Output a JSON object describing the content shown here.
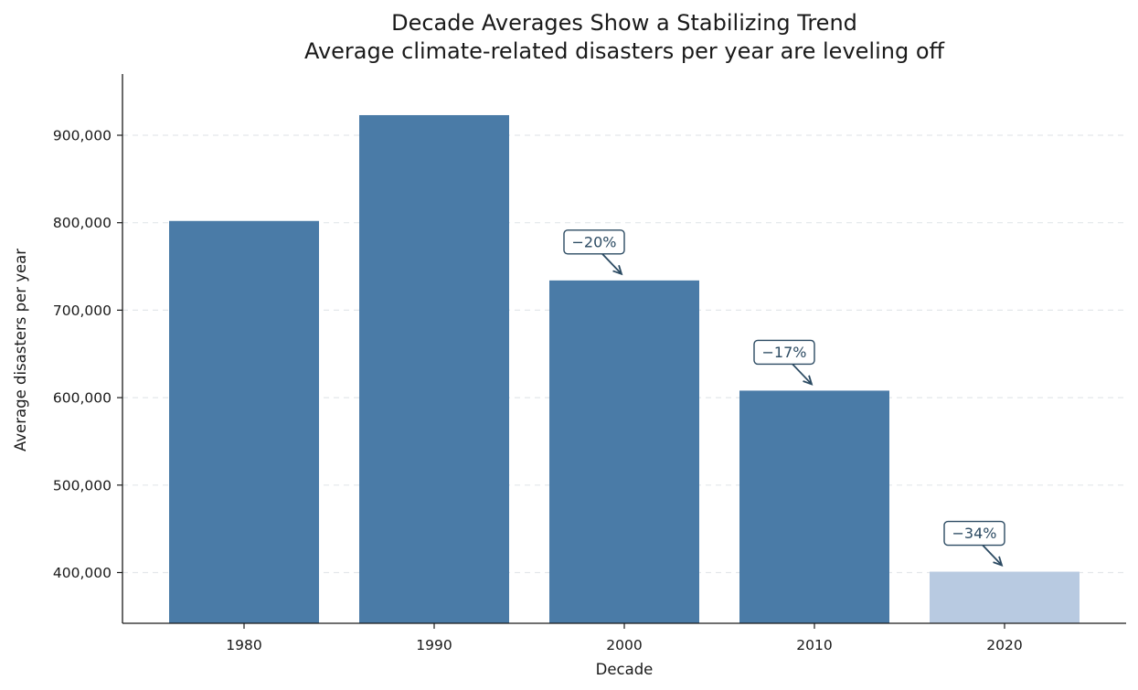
{
  "chart_data": {
    "type": "bar",
    "title": "Decade Averages Show a Stabilizing Trend",
    "subtitle": "Average climate-related disasters per year are leveling off",
    "xlabel": "Decade",
    "ylabel": "Average disasters per year",
    "categories": [
      "1980",
      "1990",
      "2000",
      "2010",
      "2020"
    ],
    "values": [
      802000,
      923000,
      734000,
      608000,
      401000
    ],
    "ylim": [
      342000,
      970000
    ],
    "yticks": [
      400000,
      500000,
      600000,
      700000,
      800000,
      900000
    ],
    "ytick_labels": [
      "400,000",
      "500,000",
      "600,000",
      "700,000",
      "800,000",
      "900,000"
    ],
    "grid": "y-dashed",
    "colors": {
      "bar": "#4a7ba7",
      "bar_partial": "#b8cae1",
      "annotation": "#2b4a62",
      "grid": "#e3e7ea"
    },
    "annotations": [
      {
        "category": "2000",
        "text": "−20%"
      },
      {
        "category": "2010",
        "text": "−17%"
      },
      {
        "category": "2020",
        "text": "−34%"
      }
    ]
  }
}
